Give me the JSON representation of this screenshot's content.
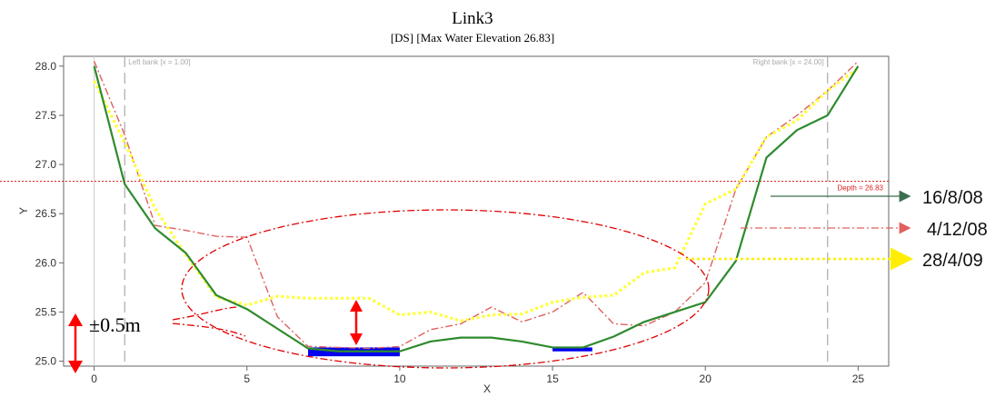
{
  "chart_data": {
    "type": "line",
    "title": "Link3",
    "subtitle": "[DS] [Max Water Elevation 26.83]",
    "xlabel": "X",
    "ylabel": "Y",
    "xlim": [
      -1,
      26
    ],
    "ylim": [
      24.95,
      28.1
    ],
    "xticks": [
      0,
      5,
      10,
      15,
      20,
      25
    ],
    "yticks": [
      25.0,
      25.5,
      26.0,
      26.5,
      27.0,
      27.5,
      28.0
    ],
    "xtick_labels": [
      "0",
      "5",
      "10",
      "15",
      "20",
      "25"
    ],
    "ytick_labels": [
      "25.0",
      "25.5",
      "26.0",
      "26.5",
      "27.0",
      "27.5",
      "28.0"
    ],
    "grid": false,
    "banks": [
      {
        "label": "Left bank [x = 1.00]",
        "x": 1
      },
      {
        "label": "Right bank [x = 24.00]",
        "x": 24
      }
    ],
    "depth": {
      "label": "Depth = 26.83",
      "y": 26.83,
      "color": "#e02020"
    },
    "water": {
      "color": "#0000ee",
      "segments": [
        [
          7,
          10,
          25.05,
          25.14
        ],
        [
          15,
          16.3,
          25.1,
          25.14
        ]
      ]
    },
    "series": [
      {
        "name": "16/8/08",
        "color": "#2e8b2e",
        "style": "solid",
        "x": [
          0,
          1,
          2,
          3,
          4,
          5,
          6,
          7,
          8,
          9,
          10,
          11,
          12,
          13,
          14,
          15,
          16,
          17,
          18,
          19,
          20,
          21,
          22,
          23,
          24,
          25
        ],
        "y": [
          28.0,
          26.8,
          26.35,
          26.1,
          25.67,
          25.53,
          25.33,
          25.13,
          25.1,
          25.1,
          25.1,
          25.2,
          25.24,
          25.24,
          25.2,
          25.14,
          25.14,
          25.25,
          25.4,
          25.5,
          25.6,
          26.02,
          27.07,
          27.35,
          27.5,
          28.0
        ]
      },
      {
        "name": "4/12/08",
        "color": "#e06060",
        "style": "dashdot",
        "x": [
          0,
          1,
          2,
          3,
          4,
          5,
          6,
          7,
          8,
          9,
          10,
          11,
          12,
          13,
          14,
          15,
          16,
          17,
          18,
          19,
          20,
          21,
          22,
          23,
          24,
          25
        ],
        "y": [
          28.05,
          27.3,
          26.38,
          26.33,
          26.27,
          26.26,
          25.45,
          25.15,
          25.14,
          25.13,
          25.15,
          25.32,
          25.38,
          25.55,
          25.4,
          25.5,
          25.7,
          25.38,
          25.36,
          25.5,
          25.8,
          26.75,
          27.28,
          27.5,
          27.75,
          28.05
        ]
      },
      {
        "name": "28/4/09",
        "color": "#ffff33",
        "style": "dotted",
        "x": [
          0,
          1,
          2,
          3,
          4,
          5,
          6,
          7,
          8,
          9,
          10,
          11,
          12,
          13,
          14,
          15,
          16,
          17,
          18,
          19,
          20,
          21,
          22,
          23,
          24,
          25
        ],
        "y": [
          27.85,
          27.22,
          26.55,
          26.08,
          25.65,
          25.57,
          25.66,
          25.64,
          25.64,
          25.64,
          25.47,
          25.5,
          25.41,
          25.47,
          25.48,
          25.6,
          25.65,
          25.67,
          25.9,
          25.95,
          26.6,
          26.75,
          27.28,
          27.45,
          27.75,
          27.98
        ]
      }
    ],
    "annotations": {
      "tolerance": "±0.5m"
    }
  }
}
